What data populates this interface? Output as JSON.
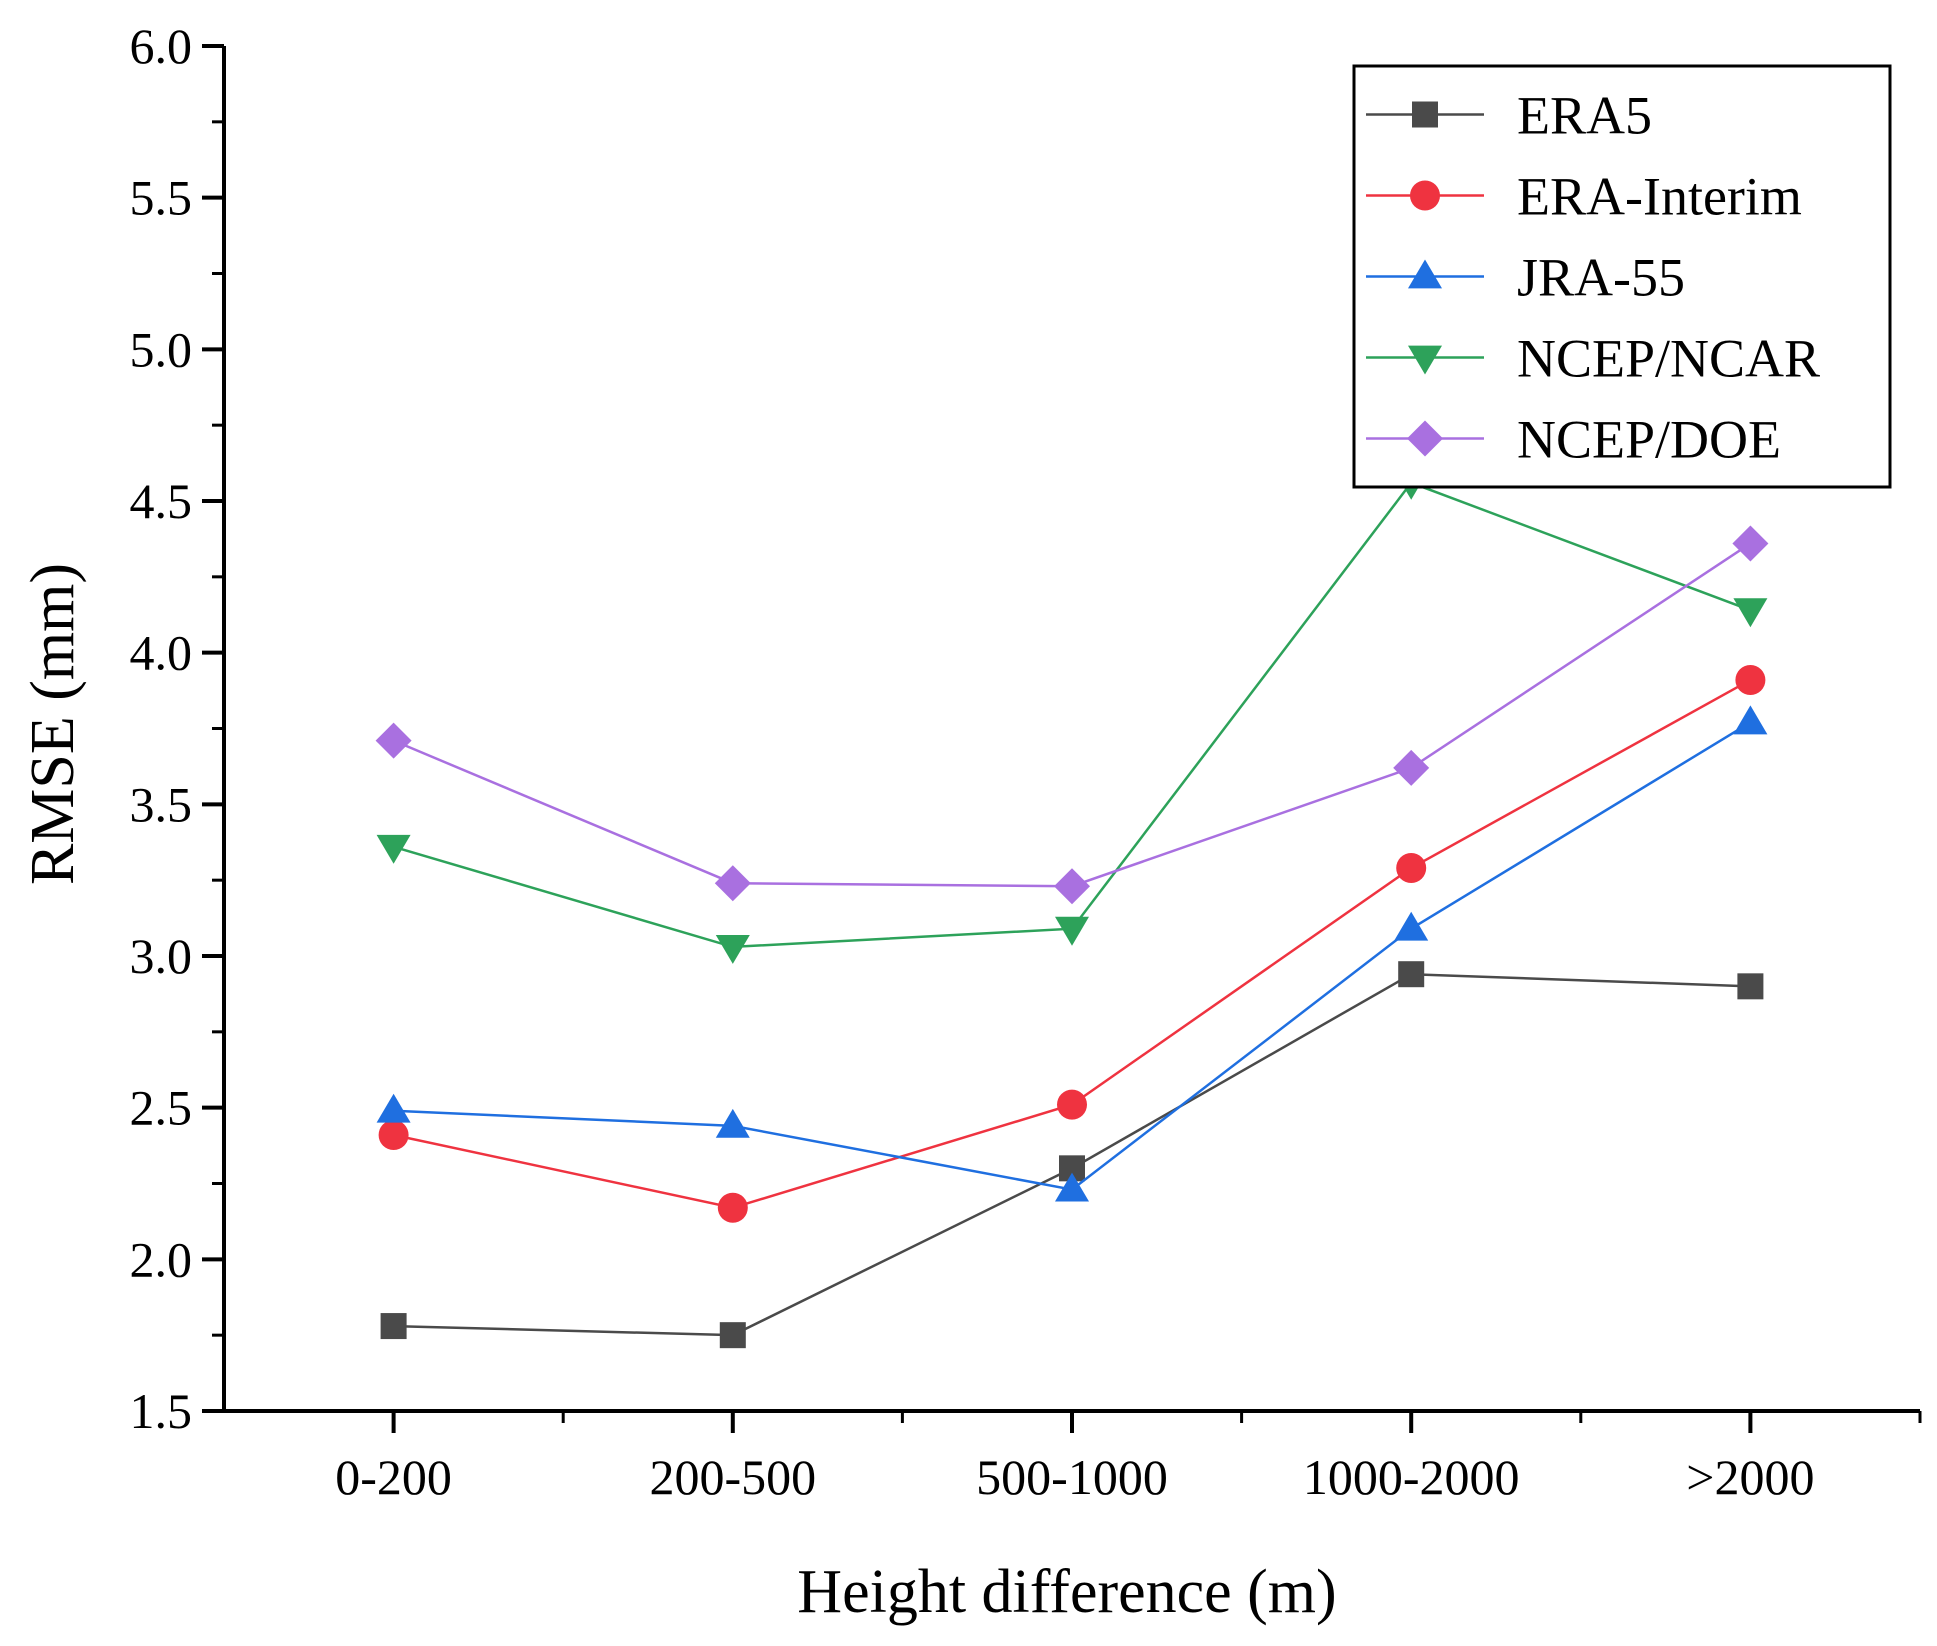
{
  "chart_data": {
    "type": "line",
    "title": "",
    "xlabel": "Height difference (m)",
    "ylabel": "RMSE (mm)",
    "categories": [
      "0-200",
      "200-500",
      "500-1000",
      "1000-2000",
      ">2000"
    ],
    "ylim": [
      1.5,
      6.0
    ],
    "yticks": [
      "1.5",
      "2.0",
      "2.5",
      "3.0",
      "3.5",
      "4.0",
      "4.5",
      "5.0",
      "5.5",
      "6.0"
    ],
    "grid": false,
    "legend_position": "top-right",
    "series": [
      {
        "name": "ERA5",
        "marker": "square",
        "color": "#4a4a4a",
        "values": [
          1.78,
          1.75,
          2.3,
          2.94,
          2.9
        ]
      },
      {
        "name": "ERA-Interim",
        "marker": "circle",
        "color": "#ef3340",
        "values": [
          2.41,
          2.17,
          2.51,
          3.29,
          3.91
        ]
      },
      {
        "name": "JRA-55",
        "marker": "triangle-up",
        "color": "#1f6fe0",
        "values": [
          2.49,
          2.44,
          2.23,
          3.09,
          3.77
        ]
      },
      {
        "name": "NCEP/NCAR",
        "marker": "triangle-down",
        "color": "#2da25a",
        "values": [
          3.36,
          3.03,
          3.09,
          4.56,
          4.14
        ]
      },
      {
        "name": "NCEP/DOE",
        "marker": "diamond",
        "color": "#a970e0",
        "values": [
          3.71,
          3.24,
          3.23,
          3.62,
          4.36
        ]
      }
    ]
  }
}
